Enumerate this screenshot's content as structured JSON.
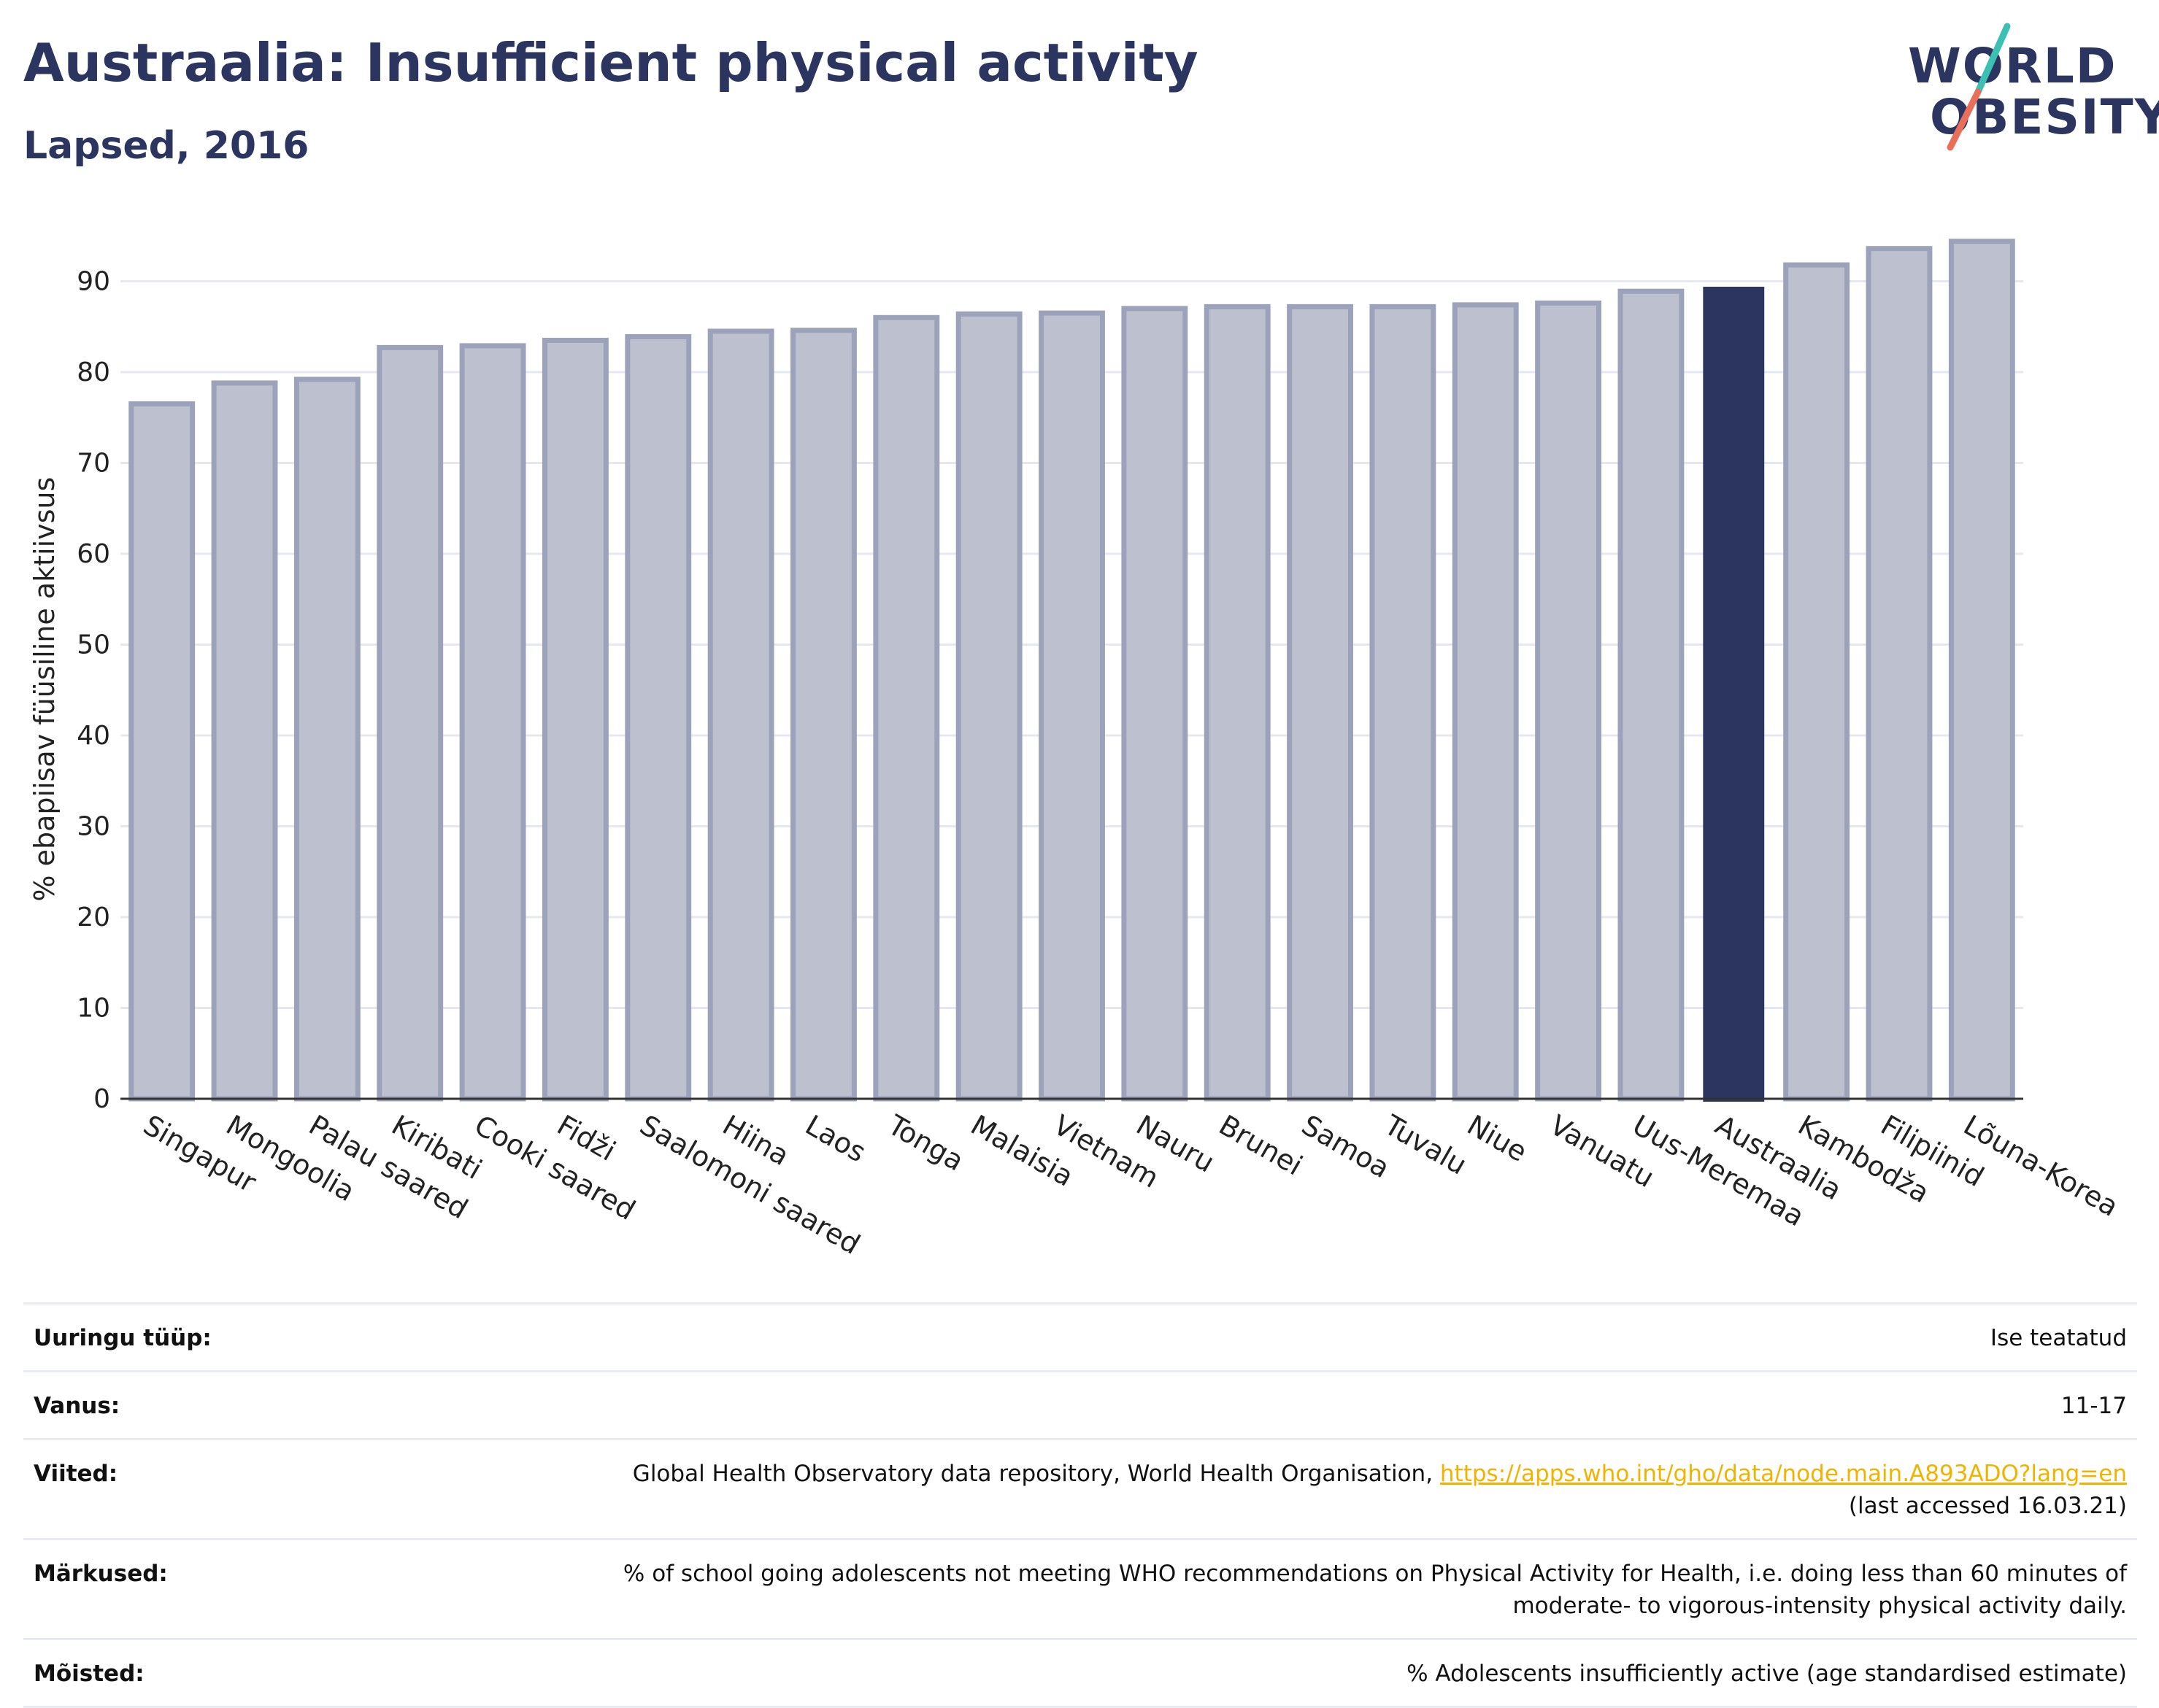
{
  "header": {
    "title": "Austraalia: Insufficient physical activity",
    "subtitle": "Lapsed, 2016"
  },
  "logo": {
    "line1": "WORLD",
    "line2": "OBESITY",
    "brand_color": "#2b3560",
    "slash_colors": [
      "#3cc0b4",
      "#e8705a"
    ]
  },
  "chart_data": {
    "type": "bar",
    "title": "",
    "xlabel": "",
    "ylabel": "% ebapiisav füüsiline aktiivsus",
    "ylim": [
      0,
      95
    ],
    "yticks": [
      0,
      10,
      20,
      30,
      40,
      50,
      60,
      70,
      80,
      90
    ],
    "grid": true,
    "categories": [
      "Singapur",
      "Mongoolia",
      "Palau saared",
      "Kiribati",
      "Cooki saared",
      "Fidži",
      "Saalomoni saared",
      "Hiina",
      "Laos",
      "Tonga",
      "Malaisia",
      "Vietnam",
      "Nauru",
      "Brunei",
      "Samoa",
      "Tuvalu",
      "Niue",
      "Vanuatu",
      "Uus-Meremaa",
      "Austraalia",
      "Kambodža",
      "Filipiinid",
      "Lõuna-Korea"
    ],
    "values": [
      76.5,
      78.8,
      79.2,
      82.7,
      82.9,
      83.5,
      83.9,
      84.5,
      84.6,
      86.0,
      86.4,
      86.5,
      87.0,
      87.2,
      87.2,
      87.2,
      87.4,
      87.6,
      88.9,
      89.4,
      91.8,
      93.6,
      94.4
    ],
    "highlight": "Austraalia",
    "bar_color": "#bdc1cf",
    "bar_border_color": "#9ca2ba",
    "highlight_color": "#2b3560"
  },
  "info": [
    {
      "label": "Uuringu tüüp:",
      "value": "Ise teatatud"
    },
    {
      "label": "Vanus:",
      "value": "11-17"
    },
    {
      "label": "Viited:",
      "value": "Global Health Observatory data repository, World Health Organisation,",
      "link": "https://apps.who.int/gho/data/node.main.A893ADO?lang=en",
      "value2": "(last accessed 16.03.21)"
    },
    {
      "label": "Märkused:",
      "value": "% of school going adolescents not meeting WHO recommendations on Physical Activity for Health, i.e. doing less than 60 minutes of",
      "value2": "moderate- to vigorous-intensity physical activity daily."
    },
    {
      "label": "Mõisted:",
      "value": "% Adolescents insufficiently active (age standardised estimate)"
    }
  ]
}
